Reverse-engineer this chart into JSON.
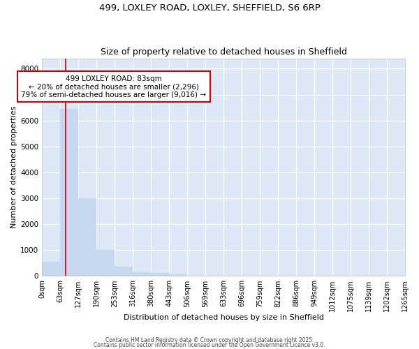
{
  "title1": "499, LOXLEY ROAD, LOXLEY, SHEFFIELD, S6 6RP",
  "title2": "Size of property relative to detached houses in Sheffield",
  "xlabel": "Distribution of detached houses by size in Sheffield",
  "ylabel": "Number of detached properties",
  "bin_edges": [
    0,
    63,
    127,
    190,
    253,
    316,
    380,
    443,
    506,
    569,
    633,
    696,
    759,
    822,
    886,
    949,
    1012,
    1075,
    1139,
    1202,
    1265
  ],
  "bar_heights": [
    550,
    6450,
    3000,
    1000,
    375,
    160,
    110,
    75,
    0,
    0,
    0,
    0,
    0,
    0,
    0,
    0,
    0,
    0,
    0,
    0
  ],
  "bar_color": "#c5d8f0",
  "bar_edge_color": "#c5d8f0",
  "property_size": 83,
  "vline_color": "#cc0000",
  "annotation_line1": "499 LOXLEY ROAD: 83sqm",
  "annotation_line2": "← 20% of detached houses are smaller (2,296)",
  "annotation_line3": "79% of semi-detached houses are larger (9,016) →",
  "annotation_box_color": "#ffffff",
  "annotation_box_edge_color": "#cc0000",
  "ylim": [
    0,
    8400
  ],
  "yticks": [
    0,
    1000,
    2000,
    3000,
    4000,
    5000,
    6000,
    7000,
    8000
  ],
  "bg_color": "#dce8f5",
  "grid_color": "#ffffff",
  "fig_bg_color": "#ffffff",
  "footer1": "Contains HM Land Registry data © Crown copyright and database right 2025.",
  "footer2": "Contains public sector information licensed under the Open Government Licence v3.0."
}
